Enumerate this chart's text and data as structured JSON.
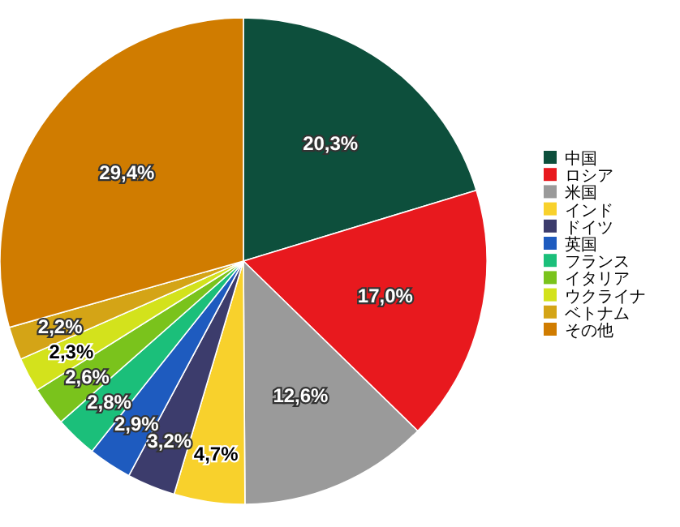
{
  "chart_data": {
    "type": "pie",
    "categories": [
      "中国",
      "ロシア",
      "米国",
      "インド",
      "ドイツ",
      "英国",
      "フランス",
      "イタリア",
      "ウクライナ",
      "ベトナム",
      "その他"
    ],
    "values": [
      20.3,
      17.0,
      12.6,
      4.7,
      3.2,
      2.9,
      2.8,
      2.6,
      2.3,
      2.2,
      29.4
    ],
    "value_labels": [
      "20,3%",
      "17,0%",
      "12,6%",
      "4,7%",
      "3,2%",
      "2,9%",
      "2,8%",
      "2,6%",
      "2,3%",
      "2,2%",
      "29,4%"
    ],
    "colors": [
      "#0d4f3c",
      "#e8191e",
      "#9a9a9a",
      "#f8d12c",
      "#3c3c6c",
      "#1e5bbf",
      "#1bbf7a",
      "#7ac31c",
      "#d3e21c",
      "#d4a416",
      "#d07c00"
    ],
    "legend": "right"
  }
}
